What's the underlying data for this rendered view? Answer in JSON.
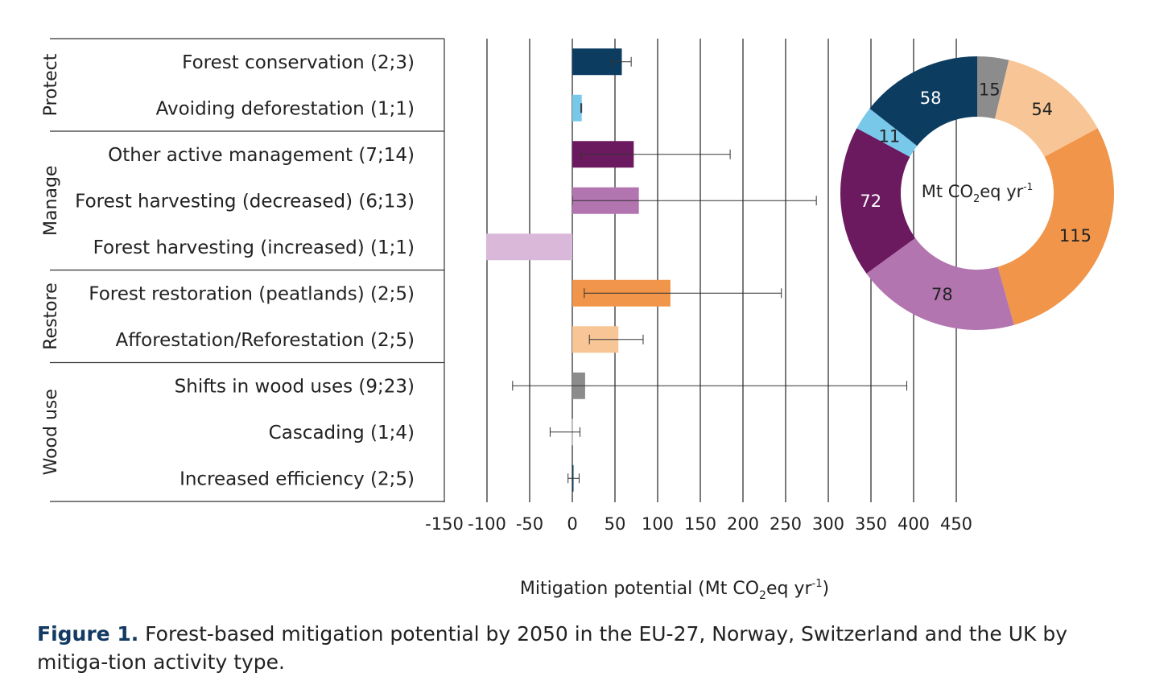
{
  "chart_data": [
    {
      "type": "bar",
      "orientation": "horizontal",
      "groups": [
        {
          "name": "Protect",
          "categories": [
            "Forest conservation (2;3)",
            "Avoiding deforestation (1;1)"
          ]
        },
        {
          "name": "Manage",
          "categories": [
            "Other active management (7;14)",
            "Forest harvesting (decreased) (6;13)",
            "Forest harvesting (increased) (1;1)"
          ]
        },
        {
          "name": "Restore",
          "categories": [
            "Forest restoration (peatlands) (2;5)",
            "Afforestation/Reforestation (2;5)"
          ]
        },
        {
          "name": "Wood use",
          "categories": [
            "Shifts in wood uses (9;23)",
            "Cascading (1;4)",
            "Increased efficiency (2;5)"
          ]
        }
      ],
      "categories": [
        "Forest conservation (2;3)",
        "Avoiding deforestation (1;1)",
        "Other active management (7;14)",
        "Forest harvesting (decreased) (6;13)",
        "Forest harvesting (increased) (1;1)",
        "Forest restoration (peatlands) (2;5)",
        "Afforestation/Reforestation (2;5)",
        "Shifts in wood uses (9;23)",
        "Cascading (1;4)",
        "Increased efficiency (2;5)"
      ],
      "values": [
        58,
        11,
        72,
        78,
        -101,
        115,
        54,
        15,
        -1,
        1
      ],
      "error_low": [
        46,
        10,
        10,
        0,
        null,
        14,
        20,
        -70,
        -26,
        -5
      ],
      "error_high": [
        69,
        11,
        185,
        286,
        null,
        245,
        83,
        392,
        9,
        8
      ],
      "colors": [
        "#0d3c61",
        "#78c8ea",
        "#6b1a5f",
        "#b375b0",
        "#d9b8d9",
        "#f0954a",
        "#f8c596",
        "#8c8c8c",
        "#bbbbbb",
        "#0d3c61"
      ],
      "xticks": [
        "-150",
        "-100",
        "-50",
        "0",
        "50",
        "100",
        "150",
        "200",
        "250",
        "300",
        "350",
        "400",
        "450"
      ],
      "xlim": [
        -150,
        450
      ],
      "grid": true,
      "xlabel_parts": [
        "Mitigation potential (Mt CO",
        "2",
        "eq yr",
        "-1",
        ")"
      ]
    },
    {
      "type": "pie",
      "style": "donut",
      "values": [
        15,
        54,
        115,
        78,
        72,
        11,
        58
      ],
      "labels": [
        "15",
        "54",
        "115",
        "78",
        "72",
        "11",
        "58"
      ],
      "colors": [
        "#8c8c8c",
        "#f8c596",
        "#f0954a",
        "#b375b0",
        "#6b1a5f",
        "#78c8ea",
        "#0d3c61"
      ],
      "label_colors": [
        "#222222",
        "#222222",
        "#222222",
        "#222222",
        "#ffffff",
        "#222222",
        "#ffffff"
      ],
      "center_label_parts": [
        "Mt CO",
        "2",
        "eq yr",
        "-1"
      ]
    }
  ],
  "caption": {
    "figure_label": "Figure 1.",
    "text": " Forest-based mitigation potential by 2050 in the EU-27, Norway, Switzerland and the UK by mitiga-tion activity type."
  }
}
